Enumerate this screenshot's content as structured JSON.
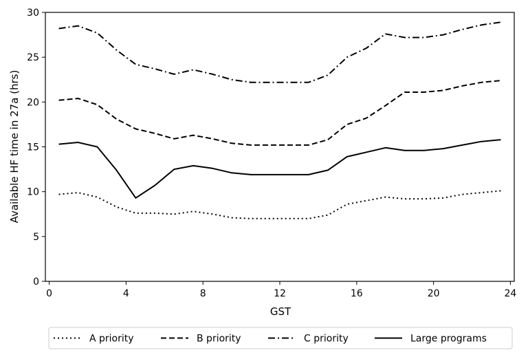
{
  "chart_data": {
    "type": "line",
    "xlabel": "GST",
    "ylabel": "Available HF time in 27a (hrs)",
    "xlim": [
      -0.2,
      24.2
    ],
    "ylim": [
      0,
      30
    ],
    "xticks": [
      0,
      4,
      8,
      12,
      16,
      20,
      24
    ],
    "yticks": [
      0,
      5,
      10,
      15,
      20,
      25,
      30
    ],
    "grid": false,
    "legend_position": "bottom-center-outside",
    "x": [
      0.5,
      1.5,
      2.5,
      3.5,
      4.5,
      5.5,
      6.5,
      7.5,
      8.5,
      9.5,
      10.5,
      11.5,
      12.5,
      13.5,
      14.5,
      15.5,
      16.5,
      17.5,
      18.5,
      19.5,
      20.5,
      21.5,
      22.5,
      23.5
    ],
    "series": [
      {
        "name": "A priority",
        "style": "dotted",
        "color": "#000000",
        "values": [
          9.7,
          9.9,
          9.4,
          8.3,
          7.6,
          7.6,
          7.5,
          7.8,
          7.5,
          7.1,
          7.0,
          7.0,
          7.0,
          7.0,
          7.4,
          8.6,
          9.0,
          9.4,
          9.2,
          9.2,
          9.3,
          9.7,
          9.9,
          10.1
        ]
      },
      {
        "name": "B priority",
        "style": "dashed",
        "color": "#000000",
        "values": [
          20.2,
          20.4,
          19.7,
          18.1,
          17.0,
          16.5,
          15.9,
          16.3,
          15.9,
          15.4,
          15.2,
          15.2,
          15.2,
          15.2,
          15.8,
          17.5,
          18.2,
          19.6,
          21.1,
          21.1,
          21.3,
          21.8,
          22.2,
          22.4
        ]
      },
      {
        "name": "C priority",
        "style": "dashdot",
        "color": "#000000",
        "values": [
          28.2,
          28.5,
          27.7,
          25.8,
          24.2,
          23.7,
          23.1,
          23.6,
          23.1,
          22.5,
          22.2,
          22.2,
          22.2,
          22.2,
          23.0,
          25.0,
          26.0,
          27.6,
          27.2,
          27.2,
          27.5,
          28.1,
          28.6,
          28.9
        ]
      },
      {
        "name": "Large programs",
        "style": "solid",
        "color": "#000000",
        "values": [
          15.3,
          15.5,
          15.0,
          12.4,
          9.3,
          10.7,
          12.5,
          12.9,
          12.6,
          12.1,
          11.9,
          11.9,
          11.9,
          11.9,
          12.4,
          13.9,
          14.4,
          14.9,
          14.6,
          14.6,
          14.8,
          15.2,
          15.6,
          15.8
        ]
      }
    ]
  }
}
